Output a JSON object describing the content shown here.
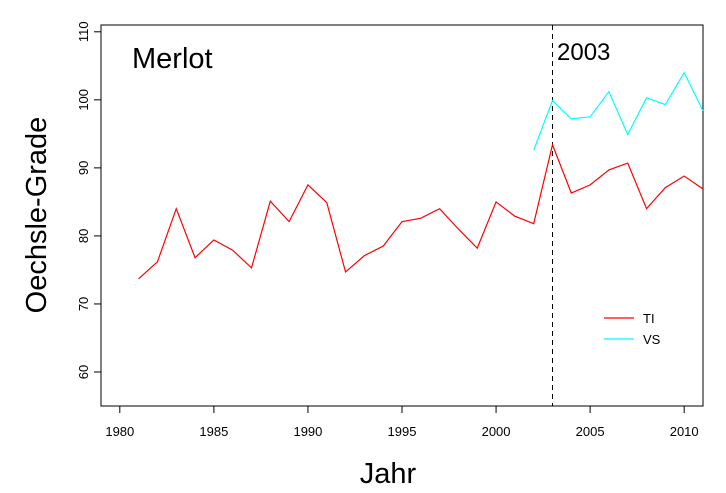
{
  "chart_data": {
    "type": "line",
    "xlabel": "Jahr",
    "ylabel": "Oechsle-Grade",
    "annotations": [
      {
        "text": "Merlot"
      },
      {
        "text": "2003"
      }
    ],
    "vline": 2003,
    "x": [
      1981,
      1982,
      1983,
      1984,
      1985,
      1986,
      1987,
      1988,
      1989,
      1990,
      1991,
      1992,
      1993,
      1994,
      1995,
      1996,
      1997,
      1998,
      1999,
      2000,
      2001,
      2002,
      2003,
      2004,
      2005,
      2006,
      2007,
      2008,
      2009,
      2010,
      2011
    ],
    "series": [
      {
        "name": "TI",
        "color": "#ff0000",
        "values": [
          73.7,
          76.2,
          84.0,
          76.8,
          79.4,
          77.9,
          75.3,
          85.1,
          82.1,
          87.5,
          84.9,
          74.7,
          77.1,
          78.5,
          82.1,
          82.6,
          84.0,
          81.0,
          78.2,
          85.0,
          82.9,
          81.8,
          93.4,
          86.3,
          87.5,
          89.7,
          90.7,
          84.0,
          87.1,
          88.8,
          86.9
        ]
      },
      {
        "name": "VS",
        "color": "#00ffff",
        "values": [
          null,
          null,
          null,
          null,
          null,
          null,
          null,
          null,
          null,
          null,
          null,
          null,
          null,
          null,
          null,
          null,
          null,
          null,
          null,
          null,
          null,
          92.6,
          99.9,
          97.2,
          97.5,
          101.2,
          94.9,
          100.3,
          99.3,
          104.0,
          98.4
        ]
      }
    ],
    "xlim": [
      1979,
      2011
    ],
    "ylim": [
      55,
      111
    ],
    "xticks": [
      1980,
      1985,
      1990,
      1995,
      2000,
      2005,
      2010
    ],
    "yticks": [
      60,
      70,
      80,
      90,
      100,
      110
    ],
    "legend": "bottom-right"
  }
}
